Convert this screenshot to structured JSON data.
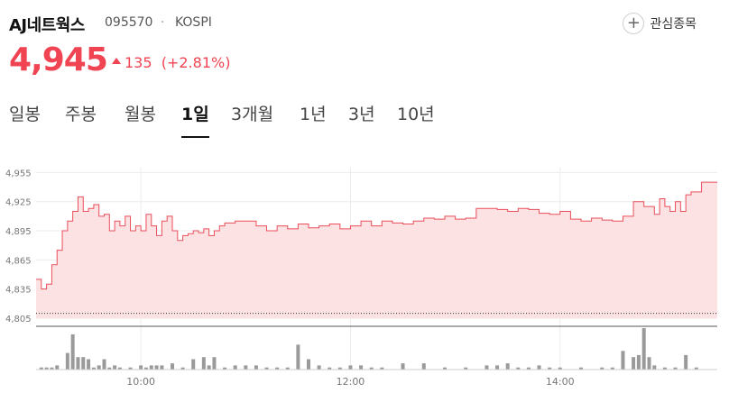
{
  "stock": {
    "name": "AJ네트웍스",
    "code": "095570",
    "separator": "·",
    "market": "KOSPI",
    "watch_label": "관심종목",
    "price": "4,945",
    "change_value": "135",
    "change_pct": "(+2.81%)",
    "up_color": "#f04452"
  },
  "tabs": [
    {
      "label": "일봉",
      "active": false
    },
    {
      "label": "주봉",
      "active": false
    },
    {
      "label": "월봉",
      "active": false
    },
    {
      "label": "1일",
      "active": true
    },
    {
      "label": "3개월",
      "active": false
    },
    {
      "label": "1년",
      "active": false
    },
    {
      "label": "3년",
      "active": false
    },
    {
      "label": "10년",
      "active": false
    }
  ],
  "chart_data": {
    "type": "area",
    "line_color": "#e94e5a",
    "fill_color": "#fde2e4",
    "grid": true,
    "ylim": [
      4805,
      4960
    ],
    "yticks": [
      "4,955",
      "4,925",
      "4,895",
      "4,865",
      "4,835",
      "4,805"
    ],
    "ytick_values": [
      4955,
      4925,
      4895,
      4865,
      4835,
      4805
    ],
    "xticks": [
      "10:00",
      "12:00",
      "14:00"
    ],
    "xtick_values": [
      10,
      12,
      14
    ],
    "xlim": [
      9.0,
      15.5
    ],
    "baseline": 4810,
    "price_series": {
      "x": [
        9.0,
        9.05,
        9.1,
        9.15,
        9.2,
        9.25,
        9.3,
        9.35,
        9.4,
        9.45,
        9.5,
        9.55,
        9.6,
        9.65,
        9.7,
        9.75,
        9.8,
        9.85,
        9.9,
        9.95,
        10.0,
        10.05,
        10.1,
        10.15,
        10.2,
        10.25,
        10.3,
        10.35,
        10.4,
        10.45,
        10.5,
        10.55,
        10.6,
        10.65,
        10.7,
        10.75,
        10.8,
        10.9,
        11.0,
        11.1,
        11.2,
        11.3,
        11.4,
        11.5,
        11.6,
        11.7,
        11.8,
        11.9,
        12.0,
        12.1,
        12.2,
        12.3,
        12.4,
        12.5,
        12.6,
        12.7,
        12.8,
        12.9,
        13.0,
        13.1,
        13.2,
        13.3,
        13.4,
        13.5,
        13.6,
        13.7,
        13.8,
        13.9,
        14.0,
        14.1,
        14.2,
        14.3,
        14.4,
        14.5,
        14.6,
        14.7,
        14.8,
        14.9,
        14.95,
        15.0,
        15.05,
        15.1,
        15.15,
        15.2,
        15.25,
        15.3,
        15.35,
        15.4,
        15.45,
        15.5
      ],
      "y": [
        4845,
        4835,
        4840,
        4860,
        4875,
        4895,
        4905,
        4915,
        4930,
        4915,
        4918,
        4922,
        4910,
        4912,
        4895,
        4905,
        4900,
        4910,
        4895,
        4900,
        4895,
        4912,
        4900,
        4890,
        4905,
        4910,
        4895,
        4885,
        4890,
        4892,
        4895,
        4893,
        4897,
        4890,
        4895,
        4900,
        4903,
        4905,
        4905,
        4900,
        4895,
        4900,
        4897,
        4902,
        4898,
        4900,
        4902,
        4897,
        4900,
        4905,
        4900,
        4905,
        4903,
        4902,
        4905,
        4908,
        4907,
        4910,
        4907,
        4908,
        4918,
        4918,
        4917,
        4915,
        4918,
        4917,
        4913,
        4912,
        4915,
        4907,
        4905,
        4908,
        4906,
        4905,
        4910,
        4925,
        4920,
        4912,
        4928,
        4920,
        4915,
        4925,
        4915,
        4932,
        4935,
        4935,
        4945,
        4945,
        4945,
        4945
      ]
    },
    "volume_series": {
      "x": [
        9.05,
        9.1,
        9.15,
        9.2,
        9.3,
        9.35,
        9.4,
        9.45,
        9.5,
        9.55,
        9.6,
        9.65,
        9.7,
        9.75,
        9.8,
        9.9,
        10.0,
        10.05,
        10.1,
        10.15,
        10.2,
        10.3,
        10.4,
        10.5,
        10.6,
        10.65,
        10.7,
        10.8,
        10.9,
        11.0,
        11.1,
        11.2,
        11.3,
        11.4,
        11.5,
        11.6,
        11.7,
        11.8,
        11.9,
        12.0,
        12.1,
        12.2,
        12.3,
        12.5,
        12.7,
        12.9,
        13.1,
        13.3,
        13.4,
        13.5,
        13.6,
        13.7,
        13.8,
        13.9,
        14.0,
        14.2,
        14.4,
        14.5,
        14.6,
        14.7,
        14.75,
        14.8,
        14.85,
        14.9,
        15.0,
        15.1,
        15.2,
        15.3
      ],
      "y": [
        1,
        1,
        1,
        2,
        8,
        17,
        6,
        6,
        5,
        1,
        2,
        5,
        1,
        2,
        1,
        1,
        2,
        1,
        2,
        2,
        2,
        3,
        1,
        5,
        6,
        2,
        6,
        1,
        2,
        2,
        2,
        1,
        1,
        1,
        12,
        5,
        2,
        1,
        1,
        2,
        2,
        1,
        1,
        3,
        3,
        1,
        1,
        2,
        2,
        3,
        1,
        1,
        2,
        1,
        1,
        1,
        1,
        1,
        9,
        6,
        7,
        20,
        6,
        2,
        1,
        1,
        7,
        1
      ]
    }
  }
}
